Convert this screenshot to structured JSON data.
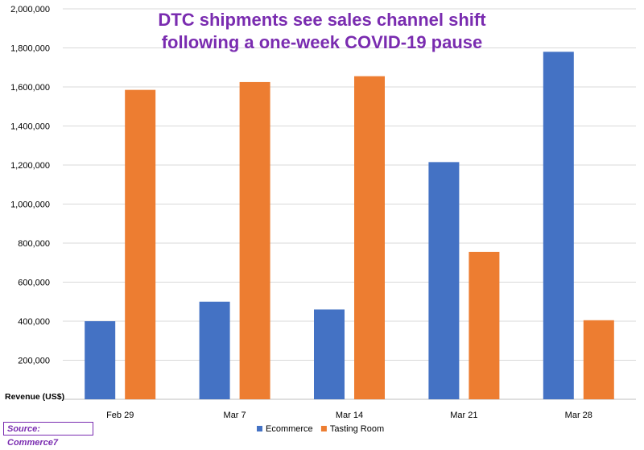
{
  "chart_data": {
    "type": "bar",
    "title_line1": "DTC shipments see sales channel shift",
    "title_line2": "following a one-week COVID-19 pause",
    "ylabel": "Revenue (US$)",
    "source": "Source: Commerce7",
    "categories": [
      "Feb 29",
      "Mar 7",
      "Mar 14",
      "Mar 21",
      "Mar 28"
    ],
    "series": [
      {
        "name": "Ecommerce",
        "color": "#4472c4",
        "values": [
          400000,
          500000,
          460000,
          1215000,
          1780000
        ]
      },
      {
        "name": "Tasting Room",
        "color": "#ed7d31",
        "values": [
          1585000,
          1625000,
          1655000,
          755000,
          405000
        ]
      }
    ],
    "ylim": [
      0,
      2000000
    ],
    "yticks": [
      "200,000",
      "400,000",
      "600,000",
      "800,000",
      "1,000,000",
      "1,200,000",
      "1,400,000",
      "1,600,000",
      "1,800,000",
      "2,000,000"
    ],
    "ytick_values": [
      200000,
      400000,
      600000,
      800000,
      1000000,
      1200000,
      1400000,
      1600000,
      1800000,
      2000000
    ],
    "grid": true,
    "legend_position": "bottom"
  }
}
